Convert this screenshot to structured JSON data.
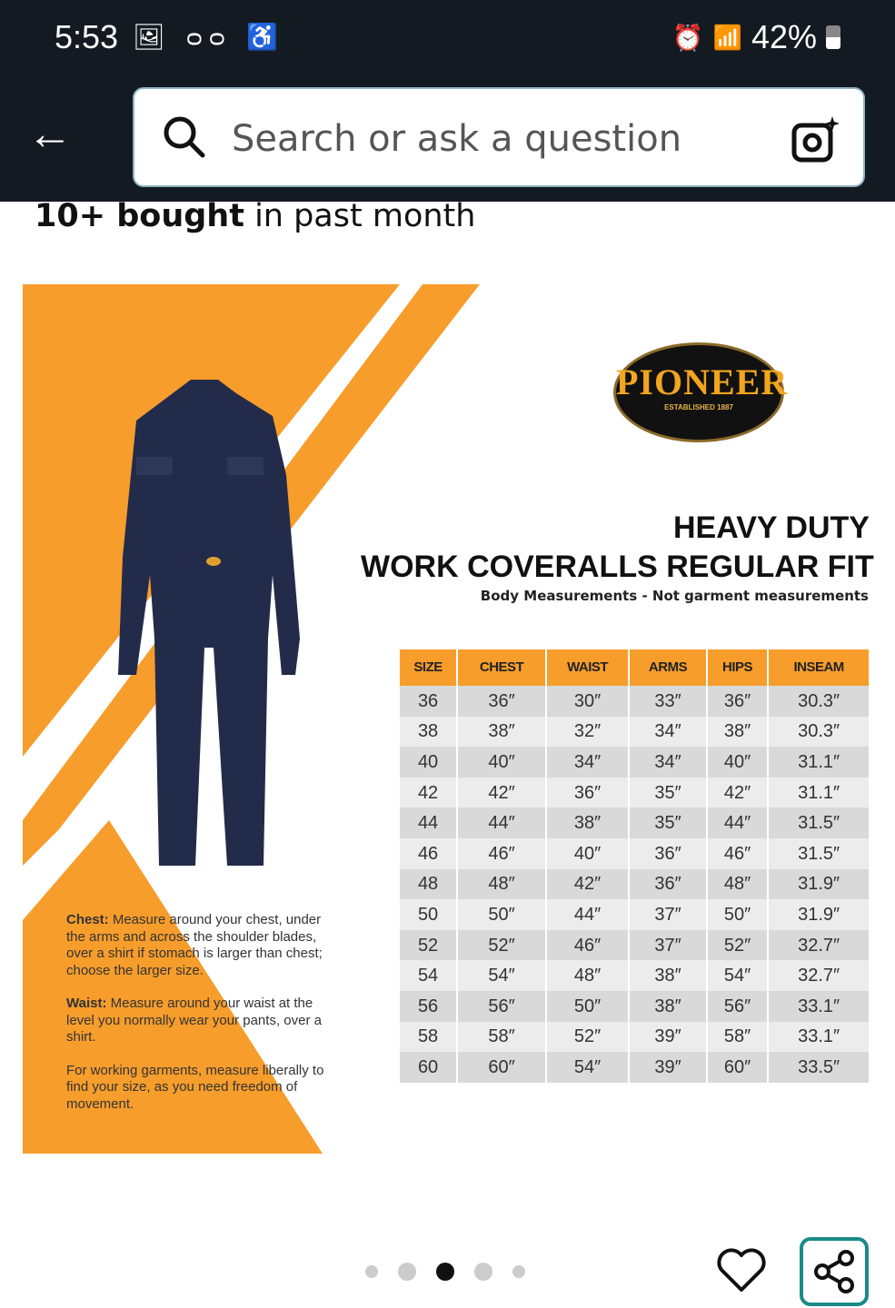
{
  "status_bar": {
    "time": "5:53",
    "battery": "42%",
    "left_icons": [
      "gallery-icon",
      "voicemail-icon",
      "accessibility-icon"
    ],
    "right_icons": [
      "alarm-icon",
      "wifi-icon",
      "signal-icon",
      "battery-icon"
    ]
  },
  "header": {
    "search_placeholder": "Search or ask a question"
  },
  "product": {
    "bought_bold": "10+ bought",
    "bought_rest": " in past month"
  },
  "image": {
    "logo_text": "PIONEER",
    "logo_sub": "ESTABLISHED 1887",
    "title_line1": "HEAVY DUTY",
    "title_line2": "WORK COVERALLS REGULAR FIT",
    "subtitle": "Body Measurements - Not garment measurements",
    "table": {
      "headers": [
        "SIZE",
        "CHEST",
        "WAIST",
        "ARMS",
        "HIPS",
        "INSEAM"
      ],
      "rows": [
        [
          "36",
          "36″",
          "30″",
          "33″",
          "36″",
          "30.3″"
        ],
        [
          "38",
          "38″",
          "32″",
          "34″",
          "38″",
          "30.3″"
        ],
        [
          "40",
          "40″",
          "34″",
          "34″",
          "40″",
          "31.1″"
        ],
        [
          "42",
          "42″",
          "36″",
          "35″",
          "42″",
          "31.1″"
        ],
        [
          "44",
          "44″",
          "38″",
          "35″",
          "44″",
          "31.5″"
        ],
        [
          "46",
          "46″",
          "40″",
          "36″",
          "46″",
          "31.5″"
        ],
        [
          "48",
          "48″",
          "42″",
          "36″",
          "48″",
          "31.9″"
        ],
        [
          "50",
          "50″",
          "44″",
          "37″",
          "50″",
          "31.9″"
        ],
        [
          "52",
          "52″",
          "46″",
          "37″",
          "52″",
          "32.7″"
        ],
        [
          "54",
          "54″",
          "48″",
          "38″",
          "54″",
          "32.7″"
        ],
        [
          "56",
          "56″",
          "50″",
          "38″",
          "56″",
          "33.1″"
        ],
        [
          "58",
          "58″",
          "52″",
          "39″",
          "58″",
          "33.1″"
        ],
        [
          "60",
          "60″",
          "54″",
          "39″",
          "60″",
          "33.5″"
        ]
      ]
    },
    "notes": [
      {
        "label": "Chest:",
        "text": " Measure around your chest, under the arms and across the shoulder blades, over a shirt if stomach is larger than chest; choose the larger size."
      },
      {
        "label": "Waist:",
        "text": " Measure around your waist at the level you normally wear your pants, over a shirt."
      },
      {
        "label": "",
        "text": "For working garments, measure liberally to find your size, as you need freedom of movement."
      }
    ],
    "colors": {
      "orange": "#f79d2c",
      "navy": "#232b4a"
    }
  },
  "carousel": {
    "count": 5,
    "active_index": 2
  }
}
